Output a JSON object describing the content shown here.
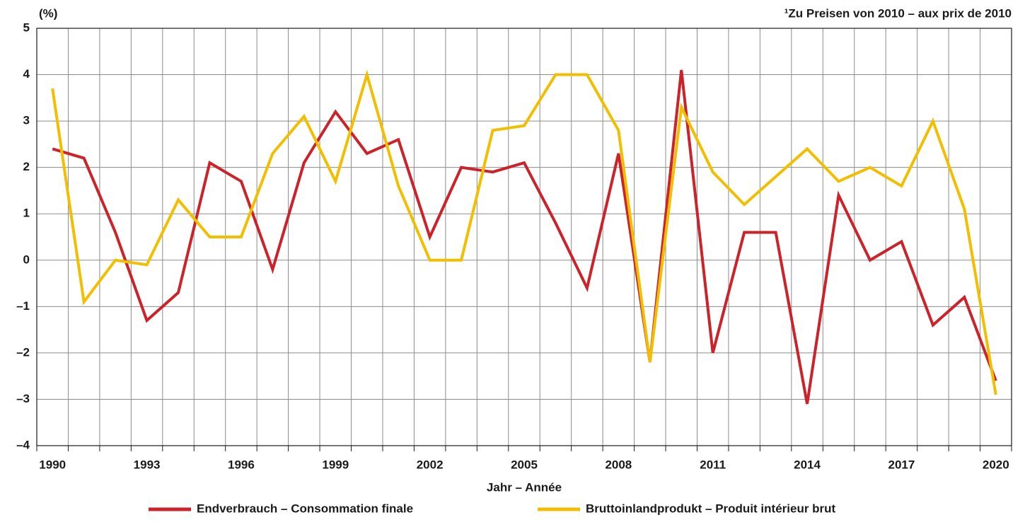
{
  "chart_data": {
    "type": "line",
    "y_unit_label": "(%)",
    "note": "¹Zu Preisen von 2010 – aux prix de 2010",
    "x_label": "Jahr – Année",
    "categories": [
      "1990",
      null,
      null,
      "1993",
      null,
      null,
      "1996",
      null,
      null,
      "1999",
      null,
      null,
      "2002",
      null,
      null,
      "2005",
      null,
      null,
      "2008",
      null,
      null,
      "2011",
      null,
      null,
      "2014",
      null,
      null,
      "2017",
      null,
      null,
      "2020"
    ],
    "series": [
      {
        "name": "Endverbrauch – Consommation finale",
        "color": "#cc2229",
        "values": [
          2.4,
          2.2,
          0.6,
          -1.3,
          -0.7,
          2.1,
          1.7,
          -0.2,
          2.1,
          3.2,
          2.3,
          2.6,
          0.5,
          2.0,
          1.9,
          2.1,
          0.8,
          -0.6,
          2.3,
          -2.2,
          4.1,
          -2.0,
          0.6,
          0.6,
          -3.1,
          1.4,
          0.0,
          0.4,
          -1.4,
          -0.8,
          -2.6
        ]
      },
      {
        "name": "Bruttoinlandprodukt – Produit intérieur brut",
        "color": "#f2be00",
        "values": [
          3.7,
          -0.9,
          0.0,
          -0.1,
          1.3,
          0.5,
          0.5,
          2.3,
          3.1,
          1.7,
          4.0,
          1.6,
          0.0,
          0.0,
          2.8,
          2.9,
          4.0,
          4.0,
          2.8,
          -2.2,
          3.3,
          1.9,
          1.2,
          1.8,
          2.4,
          1.7,
          2.0,
          1.6,
          3.0,
          1.1,
          -2.9
        ]
      }
    ],
    "ylim": [
      -4,
      5
    ],
    "yticks": [
      {
        "value": -4,
        "label": "–4"
      },
      {
        "value": -3,
        "label": "–3"
      },
      {
        "value": -2,
        "label": "–2"
      },
      {
        "value": -1,
        "label": "–1"
      },
      0,
      1,
      2,
      3,
      4,
      5
    ],
    "grid": true
  }
}
